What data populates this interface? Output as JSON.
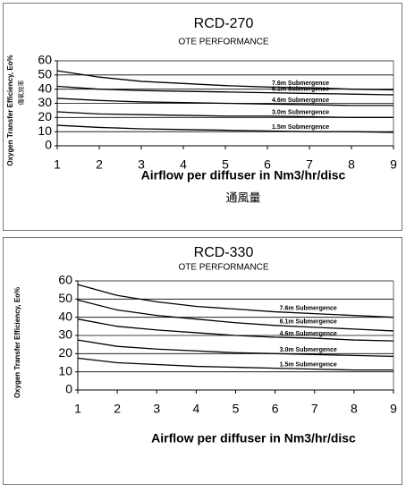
{
  "chart_data": [
    {
      "type": "line",
      "title": "RCD-270",
      "subtitle": "OTE PERFORMANCE",
      "y_label": "Oxygen Transfer Efficiency, Eo%",
      "y_label_2": "傳氧效率",
      "x_label": "Airflow per diffuser in Nm3/hr/disc",
      "x_label_2": "通風量",
      "x": [
        1,
        2,
        3,
        4,
        5,
        6,
        7,
        8,
        9
      ],
      "series": [
        {
          "name": "7.6m Submergence",
          "color": "#000000",
          "values": [
            53,
            48.5,
            45.5,
            44,
            42.5,
            41.5,
            41,
            40,
            39.5
          ]
        },
        {
          "name": "6.1m Submergence",
          "color": "#000000",
          "values": [
            42,
            40,
            39,
            38.5,
            38,
            37.5,
            37,
            36.5,
            36
          ]
        },
        {
          "name": "4.6m Submergence",
          "color": "#000000",
          "values": [
            33.5,
            32,
            31,
            30.5,
            30,
            29.5,
            29,
            28.5,
            28.5
          ]
        },
        {
          "name": "3.0m Submergence",
          "color": "#000000",
          "values": [
            24,
            22.5,
            22,
            21.5,
            21,
            21,
            20.5,
            20,
            20
          ]
        },
        {
          "name": "1.5m Submergence",
          "color": "#000000",
          "values": [
            14.5,
            13,
            12,
            11.5,
            11,
            10.5,
            10,
            10,
            9.5
          ]
        }
      ],
      "xlim": [
        1,
        9
      ],
      "xticks": [
        1,
        2,
        3,
        4,
        5,
        6,
        7,
        8,
        9
      ],
      "ylim": [
        0,
        60
      ],
      "yticks": [
        0,
        10,
        20,
        30,
        40,
        50,
        60
      ],
      "grid": true
    },
    {
      "type": "line",
      "title": "RCD-330",
      "subtitle": "OTE PERFORMANCE",
      "y_label": "Oxygen Transfer Efficiency, Eo%",
      "x_label": "Airflow per diffuser in Nm3/hr/disc",
      "x": [
        1,
        2,
        3,
        4,
        5,
        6,
        7,
        8,
        9
      ],
      "series": [
        {
          "name": "7.6m Submergence",
          "color": "#000000",
          "values": [
            58,
            52,
            48.5,
            46,
            44.5,
            43,
            42,
            41,
            40
          ]
        },
        {
          "name": "6.1m Submergence",
          "color": "#000000",
          "values": [
            49.5,
            44,
            41,
            39,
            37,
            35.5,
            34.5,
            33.5,
            32.5
          ]
        },
        {
          "name": "4.6m Submergence",
          "color": "#000000",
          "values": [
            39,
            35,
            33,
            31.5,
            30,
            29,
            28.5,
            27.5,
            27
          ]
        },
        {
          "name": "3.0m Submergence",
          "color": "#000000",
          "values": [
            27.5,
            24,
            22.5,
            21.5,
            20.5,
            20,
            19.5,
            19,
            18.5
          ]
        },
        {
          "name": "1.5m Submergence",
          "color": "#000000",
          "values": [
            17.5,
            15,
            14,
            13,
            12.5,
            12,
            11.5,
            11,
            11
          ]
        }
      ],
      "xlim": [
        1,
        9
      ],
      "xticks": [
        1,
        2,
        3,
        4,
        5,
        6,
        7,
        8,
        9
      ],
      "ylim": [
        0,
        60
      ],
      "yticks": [
        0,
        10,
        20,
        30,
        40,
        50,
        60
      ],
      "grid": true
    }
  ]
}
